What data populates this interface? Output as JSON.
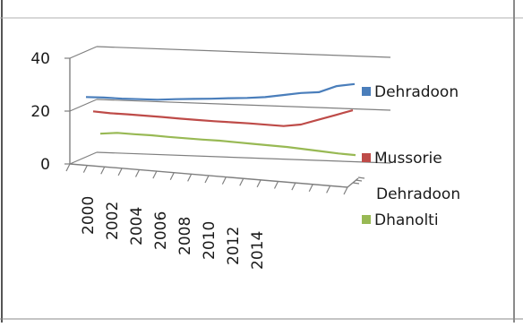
{
  "chart_data": {
    "type": "line",
    "title": "",
    "xlabel": "",
    "ylabel": "",
    "ylim": [
      0,
      40
    ],
    "y_ticks": [
      0,
      20,
      40
    ],
    "x": [
      2000,
      2001,
      2002,
      2003,
      2004,
      2005,
      2006,
      2007,
      2008,
      2009,
      2010,
      2011,
      2012,
      2013,
      2014,
      2015
    ],
    "x_tick_labels": [
      "2000",
      "2002",
      "2004",
      "2006",
      "2008",
      "2010",
      "2012",
      "2014"
    ],
    "depth_axis_label": "Dehradoon",
    "grid": true,
    "legend_position": "right",
    "series": [
      {
        "name": "Dehradoon",
        "color": "#4a7ebb",
        "values": [
          20,
          20,
          19.8,
          19.8,
          19.8,
          20.2,
          20.5,
          20.8,
          21.2,
          21.5,
          22,
          23,
          24,
          24.5,
          27,
          28
        ]
      },
      {
        "name": "Mussorie",
        "color": "#be4b48",
        "values": [
          16.5,
          16,
          15.8,
          15.5,
          15.2,
          14.8,
          14.5,
          14.2,
          14,
          13.8,
          13.5,
          13.2,
          14,
          16,
          18,
          20
        ]
      },
      {
        "name": "Dhanolti",
        "color": "#98b954",
        "values": [
          10,
          10.5,
          10.2,
          10,
          9.6,
          9.3,
          9,
          8.8,
          8.4,
          8,
          7.6,
          7.2,
          6.6,
          6,
          5.4,
          5
        ]
      }
    ]
  }
}
